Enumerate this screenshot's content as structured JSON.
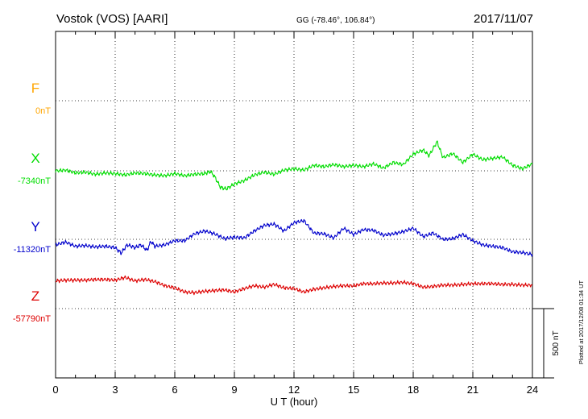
{
  "header": {
    "station": "Vostok (VOS)  [AARI]",
    "coords": "GG (-78.46°, 106.84°)",
    "date": "2017/11/07"
  },
  "plotted_note": "Plotted at 2017/12/08 01:34 UT",
  "scale_label": "500 nT",
  "chart_data": {
    "type": "line",
    "xlabel": "U T (hour)",
    "xlim": [
      0,
      24
    ],
    "x_ticks": [
      "0",
      "3",
      "6",
      "9",
      "12",
      "15",
      "18",
      "21",
      "24"
    ],
    "grid": true,
    "series": [
      {
        "name": "F",
        "baseline_label": "0nT",
        "color": "#FFA500",
        "x": [],
        "y": []
      },
      {
        "name": "X",
        "baseline_label": "-7340nT",
        "color": "#00DD00",
        "x": [
          0,
          0.5,
          1,
          1.5,
          2,
          2.5,
          3,
          3.5,
          4,
          4.5,
          5,
          5.5,
          6,
          6.5,
          7,
          7.5,
          7.8,
          8,
          8.3,
          8.6,
          9,
          9.5,
          10,
          10.5,
          11,
          11.5,
          12,
          12.5,
          13,
          13.5,
          14,
          14.5,
          15,
          15.5,
          16,
          16.5,
          17,
          17.5,
          18,
          18.5,
          18.8,
          19.2,
          19.5,
          20,
          20.5,
          21,
          21.5,
          22,
          22.5,
          23,
          23.5,
          24
        ],
        "y": [
          0,
          5,
          -15,
          -10,
          -25,
          -15,
          -20,
          -30,
          -15,
          -20,
          -30,
          -35,
          -20,
          -35,
          -25,
          -20,
          -5,
          -40,
          -120,
          -130,
          -95,
          -70,
          -30,
          -10,
          -25,
          5,
          15,
          5,
          40,
          30,
          45,
          30,
          40,
          30,
          50,
          20,
          60,
          45,
          120,
          150,
          110,
          210,
          95,
          125,
          60,
          120,
          80,
          90,
          100,
          40,
          15,
          50
        ]
      },
      {
        "name": "Y",
        "baseline_label": "-11320nT",
        "color": "#0000CC",
        "x": [
          0,
          0.5,
          1,
          1.5,
          2,
          2.5,
          3,
          3.3,
          3.6,
          4,
          4.3,
          4.6,
          4.8,
          5,
          5.5,
          6,
          6.5,
          7,
          7.5,
          8,
          8.5,
          9,
          9.5,
          10,
          10.5,
          11,
          11.5,
          12,
          12.5,
          13,
          13.5,
          14,
          14.5,
          15,
          15.5,
          16,
          16.5,
          17,
          17.5,
          18,
          18.5,
          19,
          19.5,
          20,
          20.5,
          21,
          21.5,
          22,
          22.5,
          23,
          23.5,
          24
        ],
        "y": [
          -40,
          -20,
          -50,
          -45,
          -55,
          -50,
          -60,
          -100,
          -40,
          -60,
          -40,
          -80,
          -15,
          -50,
          -40,
          -10,
          -10,
          40,
          60,
          40,
          5,
          15,
          10,
          60,
          100,
          110,
          60,
          120,
          135,
          45,
          40,
          10,
          80,
          35,
          70,
          65,
          30,
          40,
          55,
          80,
          20,
          45,
          0,
          5,
          35,
          -10,
          -40,
          -50,
          -60,
          -90,
          -95,
          -110
        ]
      },
      {
        "name": "Z",
        "baseline_label": "-57790nT",
        "color": "#DD0000",
        "x": [
          0,
          0.5,
          1,
          1.5,
          2,
          2.5,
          3,
          3.5,
          4,
          4.5,
          5,
          5.5,
          6,
          6.5,
          7,
          7.5,
          8,
          8.5,
          9,
          9.5,
          10,
          10.5,
          11,
          11.5,
          12,
          12.5,
          13,
          13.5,
          14,
          14.5,
          15,
          15.5,
          16,
          16.5,
          17,
          17.5,
          18,
          18.5,
          19,
          19.5,
          20,
          20.5,
          21,
          21.5,
          22,
          22.5,
          23,
          23.5,
          24
        ],
        "y": [
          200,
          205,
          205,
          205,
          210,
          210,
          205,
          225,
          200,
          210,
          195,
          165,
          150,
          120,
          115,
          125,
          130,
          135,
          120,
          145,
          165,
          155,
          175,
          150,
          145,
          120,
          140,
          150,
          160,
          165,
          165,
          180,
          180,
          185,
          185,
          190,
          180,
          155,
          160,
          170,
          170,
          175,
          180,
          180,
          180,
          175,
          175,
          170,
          170
        ]
      }
    ]
  }
}
